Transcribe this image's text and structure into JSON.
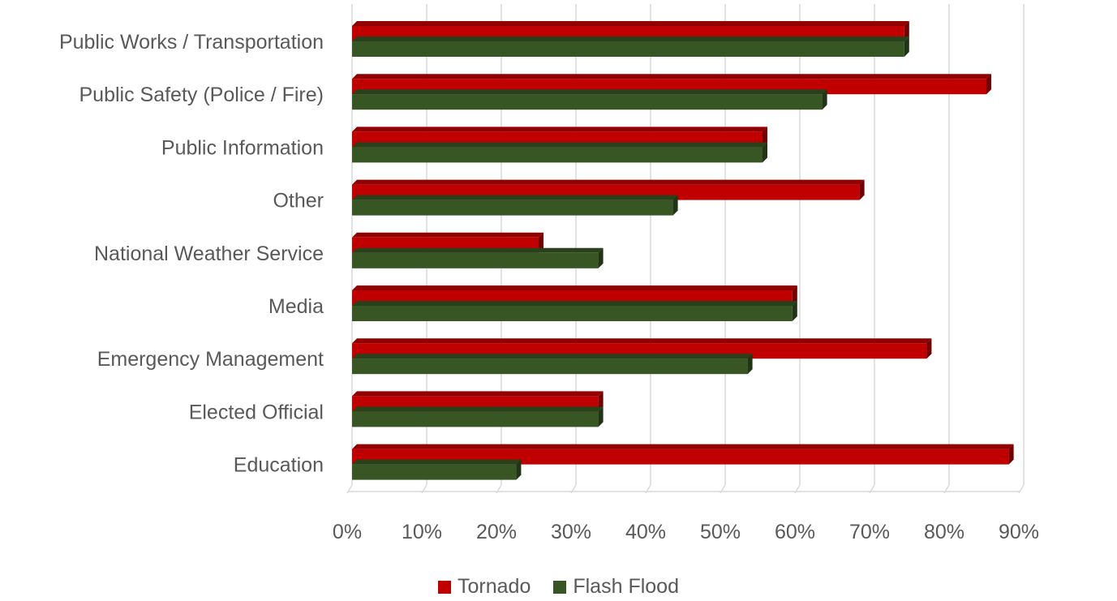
{
  "chart_data": {
    "type": "bar",
    "orientation": "horizontal",
    "style": "3d",
    "categories": [
      "Public Works / Transportation",
      "Public Safety (Police / Fire)",
      "Public Information",
      "Other",
      "National Weather Service",
      "Media",
      "Emergency Management",
      "Elected Official",
      "Education"
    ],
    "series": [
      {
        "name": "Tornado",
        "color": "#c00000",
        "values": [
          74,
          85,
          55,
          68,
          25,
          59,
          77,
          33,
          88
        ]
      },
      {
        "name": "Flash Flood",
        "color": "#375623",
        "values": [
          74,
          63,
          55,
          43,
          33,
          59,
          53,
          33,
          22
        ]
      }
    ],
    "xlim": [
      0,
      90
    ],
    "ticks": [
      "0%",
      "10%",
      "20%",
      "30%",
      "40%",
      "50%",
      "60%",
      "70%",
      "80%",
      "90%"
    ],
    "tick_values": [
      0,
      10,
      20,
      30,
      40,
      50,
      60,
      70,
      80,
      90
    ],
    "grid": true,
    "legend_position": "bottom",
    "title": "",
    "xlabel": "",
    "ylabel": ""
  }
}
